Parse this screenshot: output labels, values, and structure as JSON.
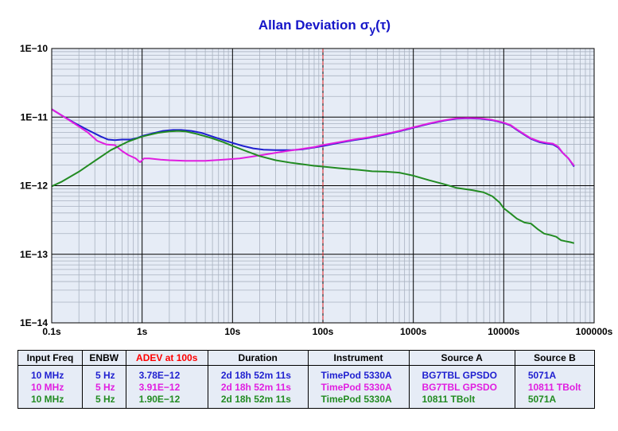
{
  "chart_data": {
    "type": "line",
    "title": "Allan Deviation",
    "title_symbol": "σ",
    "title_sub": "y",
    "title_arg": "(τ)",
    "xscale": "log",
    "yscale": "log",
    "xlim": [
      0.1,
      100000
    ],
    "ylim": [
      1e-14,
      1e-10
    ],
    "x_tick_labels": [
      "0.1s",
      "1s",
      "10s",
      "100s",
      "1000s",
      "10000s",
      "100000s"
    ],
    "y_tick_labels": [
      "1E−10",
      "1E−11",
      "1E−12",
      "1E−13",
      "1E−14"
    ],
    "marker_x": 100,
    "grid": true,
    "series": [
      {
        "name": "TimePod 5330A BG7TBL GPSDO vs 5071A",
        "color": "#1f1fd0",
        "points": [
          [
            0.1,
            1.3e-11
          ],
          [
            0.13,
            1.05e-11
          ],
          [
            0.18,
            8.2e-12
          ],
          [
            0.25,
            6.5e-12
          ],
          [
            0.35,
            5.2e-12
          ],
          [
            0.42,
            4.7e-12
          ],
          [
            0.5,
            4.6e-12
          ],
          [
            0.6,
            4.7e-12
          ],
          [
            0.75,
            4.7e-12
          ],
          [
            0.9,
            5e-12
          ],
          [
            1.0,
            5.3e-12
          ],
          [
            1.3,
            5.8e-12
          ],
          [
            1.7,
            6.3e-12
          ],
          [
            2.2,
            6.5e-12
          ],
          [
            2.7,
            6.5e-12
          ],
          [
            3.5,
            6.3e-12
          ],
          [
            4.5,
            5.9e-12
          ],
          [
            6,
            5.2e-12
          ],
          [
            8,
            4.6e-12
          ],
          [
            10,
            4.2e-12
          ],
          [
            13,
            3.8e-12
          ],
          [
            17,
            3.5e-12
          ],
          [
            22,
            3.35e-12
          ],
          [
            30,
            3.3e-12
          ],
          [
            45,
            3.3e-12
          ],
          [
            60,
            3.4e-12
          ],
          [
            80,
            3.6e-12
          ],
          [
            100,
            3.78e-12
          ],
          [
            150,
            4.2e-12
          ],
          [
            220,
            4.6e-12
          ],
          [
            330,
            5e-12
          ],
          [
            500,
            5.6e-12
          ],
          [
            700,
            6.2e-12
          ],
          [
            1000,
            7e-12
          ],
          [
            1500,
            8e-12
          ],
          [
            2200,
            8.9e-12
          ],
          [
            3000,
            9.5e-12
          ],
          [
            4000,
            9.6e-12
          ],
          [
            5500,
            9.5e-12
          ],
          [
            7500,
            9e-12
          ],
          [
            10000,
            8.2e-12
          ],
          [
            12000,
            7.5e-12
          ],
          [
            14000,
            6.5e-12
          ],
          [
            17000,
            5.5e-12
          ],
          [
            20000,
            4.8e-12
          ],
          [
            25000,
            4.3e-12
          ],
          [
            30000,
            4.1e-12
          ],
          [
            35000,
            4e-12
          ],
          [
            40000,
            3.6e-12
          ],
          [
            45000,
            3e-12
          ],
          [
            52000,
            2.5e-12
          ],
          [
            60000,
            1.9e-12
          ]
        ]
      },
      {
        "name": "TimePod 5330A BG7TBL GPSDO vs 10811 TBolt",
        "color": "#e01ee0",
        "points": [
          [
            0.1,
            1.3e-11
          ],
          [
            0.13,
            1.05e-11
          ],
          [
            0.18,
            8e-12
          ],
          [
            0.25,
            6e-12
          ],
          [
            0.32,
            4.5e-12
          ],
          [
            0.4,
            4e-12
          ],
          [
            0.5,
            3.9e-12
          ],
          [
            0.6,
            3.2e-12
          ],
          [
            0.7,
            2.8e-12
          ],
          [
            0.85,
            2.5e-12
          ],
          [
            0.95,
            2.2e-12
          ],
          [
            1.05,
            2.5e-12
          ],
          [
            1.2,
            2.5e-12
          ],
          [
            1.6,
            2.4e-12
          ],
          [
            2,
            2.35e-12
          ],
          [
            3,
            2.3e-12
          ],
          [
            5,
            2.3e-12
          ],
          [
            8,
            2.4e-12
          ],
          [
            12,
            2.5e-12
          ],
          [
            18,
            2.7e-12
          ],
          [
            25,
            2.9e-12
          ],
          [
            40,
            3.2e-12
          ],
          [
            60,
            3.45e-12
          ],
          [
            80,
            3.65e-12
          ],
          [
            100,
            3.91e-12
          ],
          [
            150,
            4.3e-12
          ],
          [
            220,
            4.7e-12
          ],
          [
            330,
            5.1e-12
          ],
          [
            500,
            5.7e-12
          ],
          [
            700,
            6.3e-12
          ],
          [
            1000,
            7.1e-12
          ],
          [
            1500,
            8.1e-12
          ],
          [
            2200,
            9e-12
          ],
          [
            3000,
            9.6e-12
          ],
          [
            4000,
            9.7e-12
          ],
          [
            5500,
            9.6e-12
          ],
          [
            7500,
            9.1e-12
          ],
          [
            10000,
            8.3e-12
          ],
          [
            12000,
            7.6e-12
          ],
          [
            14000,
            6.6e-12
          ],
          [
            17000,
            5.6e-12
          ],
          [
            20000,
            4.9e-12
          ],
          [
            25000,
            4.4e-12
          ],
          [
            30000,
            4.2e-12
          ],
          [
            35000,
            4.1e-12
          ],
          [
            40000,
            3.7e-12
          ],
          [
            45000,
            3e-12
          ],
          [
            52000,
            2.5e-12
          ],
          [
            60000,
            1.95e-12
          ]
        ]
      },
      {
        "name": "TimePod 5330A 10811 TBolt vs 5071A",
        "color": "#228b22",
        "points": [
          [
            0.1,
            9.8e-13
          ],
          [
            0.13,
            1.15e-12
          ],
          [
            0.2,
            1.6e-12
          ],
          [
            0.3,
            2.3e-12
          ],
          [
            0.45,
            3.3e-12
          ],
          [
            0.7,
            4.4e-12
          ],
          [
            1,
            5.2e-12
          ],
          [
            1.5,
            5.9e-12
          ],
          [
            2,
            6.2e-12
          ],
          [
            2.5,
            6.3e-12
          ],
          [
            3,
            6.2e-12
          ],
          [
            4,
            5.7e-12
          ],
          [
            6,
            4.9e-12
          ],
          [
            8,
            4.3e-12
          ],
          [
            10,
            3.8e-12
          ],
          [
            15,
            3.1e-12
          ],
          [
            20,
            2.7e-12
          ],
          [
            30,
            2.35e-12
          ],
          [
            45,
            2.15e-12
          ],
          [
            60,
            2.05e-12
          ],
          [
            80,
            1.95e-12
          ],
          [
            100,
            1.9e-12
          ],
          [
            150,
            1.8e-12
          ],
          [
            250,
            1.7e-12
          ],
          [
            350,
            1.62e-12
          ],
          [
            500,
            1.6e-12
          ],
          [
            700,
            1.55e-12
          ],
          [
            1000,
            1.4e-12
          ],
          [
            1500,
            1.2e-12
          ],
          [
            2200,
            1.05e-12
          ],
          [
            3000,
            9.3e-13
          ],
          [
            4500,
            8.6e-13
          ],
          [
            6000,
            8e-13
          ],
          [
            7500,
            7e-13
          ],
          [
            9000,
            5.7e-13
          ],
          [
            10000,
            4.7e-13
          ],
          [
            12000,
            3.9e-13
          ],
          [
            14000,
            3.3e-13
          ],
          [
            17000,
            2.9e-13
          ],
          [
            20000,
            2.8e-13
          ],
          [
            24000,
            2.3e-13
          ],
          [
            28000,
            2e-13
          ],
          [
            33000,
            1.9e-13
          ],
          [
            38000,
            1.8e-13
          ],
          [
            43000,
            1.6e-13
          ],
          [
            48000,
            1.55e-13
          ],
          [
            55000,
            1.5e-13
          ],
          [
            60000,
            1.45e-13
          ]
        ]
      }
    ]
  },
  "legend": {
    "headers": [
      "Input Freq",
      "ENBW",
      "ADEV at 100s",
      "Duration",
      "Instrument",
      "Source A",
      "Source B"
    ],
    "adev_header_color": "#ff0000",
    "rows": [
      {
        "color": "#1f1fd0",
        "cells": [
          "10 MHz",
          "5 Hz",
          "3.78E−12",
          "2d 18h 52m 11s",
          "TimePod 5330A",
          "BG7TBL GPSDO",
          "5071A"
        ]
      },
      {
        "color": "#e01ee0",
        "cells": [
          "10 MHz",
          "5 Hz",
          "3.91E−12",
          "2d 18h 52m 11s",
          "TimePod 5330A",
          "BG7TBL GPSDO",
          "10811 TBolt"
        ]
      },
      {
        "color": "#228b22",
        "cells": [
          "10 MHz",
          "5 Hz",
          "1.90E−12",
          "2d 18h 52m 11s",
          "TimePod 5330A",
          "10811 TBolt",
          "5071A"
        ]
      }
    ]
  }
}
